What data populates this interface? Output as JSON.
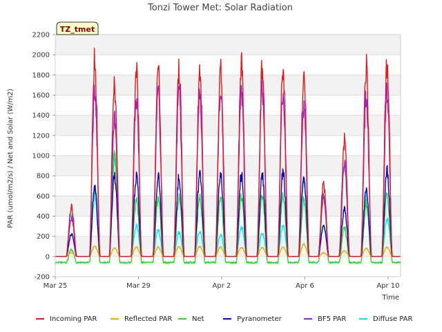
{
  "chart_data": {
    "type": "line",
    "title": "Tonzi Tower Met: Solar Radiation",
    "xlabel": "Time",
    "ylabel": "PAR (umol/m2/s) / Net and Solar (W/m2)",
    "tag": "TZ_tmet",
    "ylim": [
      -200,
      2200
    ],
    "yticks": [
      -200,
      0,
      200,
      400,
      600,
      800,
      1000,
      1200,
      1400,
      1600,
      1800,
      2000,
      2200
    ],
    "xlim": [
      0,
      16.6
    ],
    "xticks": [
      {
        "day": 0,
        "label": "Mar 25"
      },
      {
        "day": 4,
        "label": "Mar 29"
      },
      {
        "day": 8,
        "label": "Apr 2"
      },
      {
        "day": 12,
        "label": "Apr 6"
      },
      {
        "day": 16,
        "label": "Apr 10"
      }
    ],
    "grid": true,
    "legend_position": "bottom",
    "day_centers": [
      0.78,
      1.9,
      2.85,
      3.9,
      4.95,
      5.95,
      6.95,
      7.95,
      8.95,
      9.95,
      10.95,
      11.95,
      12.9,
      13.9,
      14.95,
      15.95,
      16.95
    ],
    "series": [
      {
        "name": "Incoming PAR",
        "color": "#e31a1c",
        "night": 0,
        "peaks": [
          530,
          2100,
          1810,
          2010,
          2020,
          2040,
          1990,
          2020,
          2030,
          2010,
          2050,
          1940,
          760,
          1240,
          2020,
          2080,
          2070
        ]
      },
      {
        "name": "Reflected PAR",
        "color": "#f5a300",
        "night": 0,
        "peaks": [
          40,
          110,
          90,
          100,
          100,
          105,
          105,
          100,
          100,
          100,
          100,
          130,
          40,
          60,
          90,
          100,
          95
        ]
      },
      {
        "name": "Net",
        "color": "#22dd22",
        "night": -60,
        "peaks": [
          80,
          720,
          1060,
          620,
          650,
          640,
          640,
          640,
          650,
          660,
          670,
          620,
          630,
          320,
          570,
          680,
          670
        ]
      },
      {
        "name": "Pyranometer",
        "color": "#0000cc",
        "night": 0,
        "peaks": [
          240,
          760,
          860,
          860,
          850,
          840,
          880,
          890,
          870,
          860,
          900,
          860,
          320,
          510,
          700,
          920,
          900
        ]
      },
      {
        "name": "BF5 PAR",
        "color": "#9b1fe8",
        "night": 0,
        "peaks": [
          420,
          1800,
          1480,
          1700,
          1760,
          1770,
          1750,
          1790,
          1800,
          1800,
          1800,
          1600,
          640,
          1000,
          1700,
          1800,
          1760
        ]
      },
      {
        "name": "Diffuse PAR",
        "color": "#00e5ff",
        "night": 0,
        "peaks": [
          450,
          640,
          1080,
          330,
          280,
          260,
          270,
          230,
          320,
          250,
          330,
          830,
          330,
          960,
          650,
          400,
          330
        ]
      }
    ]
  }
}
